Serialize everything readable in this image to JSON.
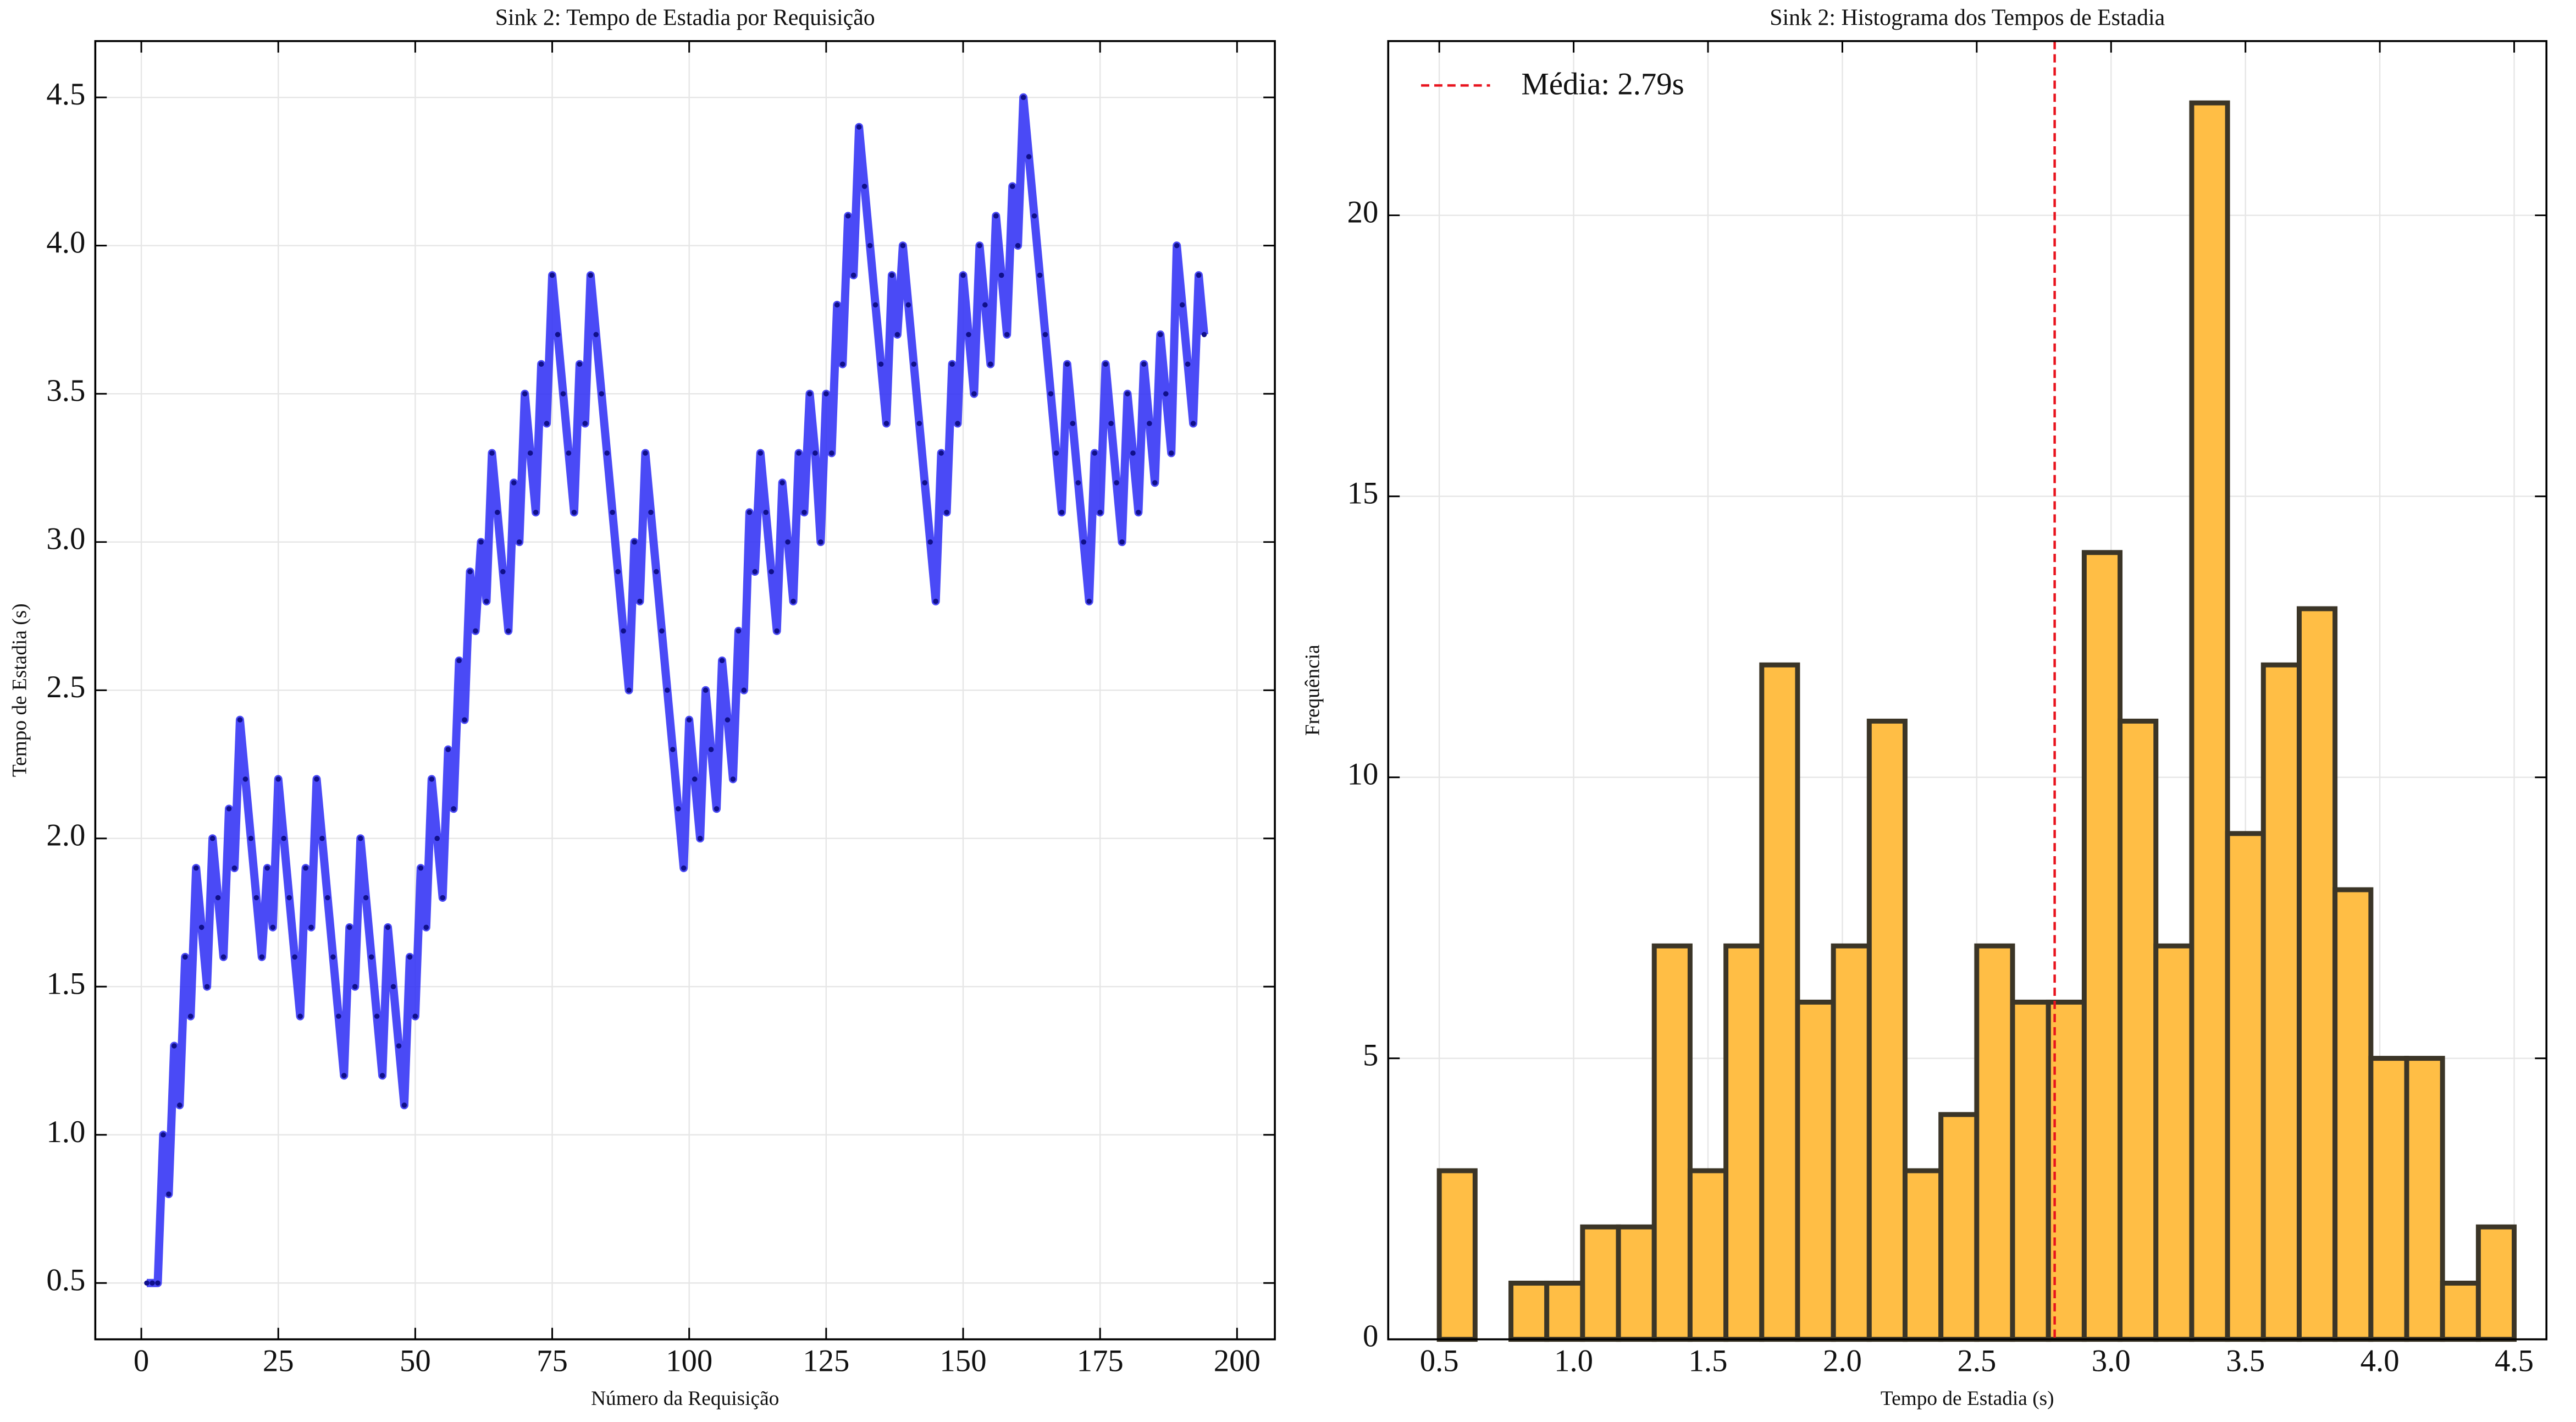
{
  "chart_data": [
    {
      "type": "line",
      "title": "Sink 2: Tempo de Estadia por Requisição",
      "x_label": "Número da Requisição",
      "y_label": "Tempo de Estadia (s)",
      "x": [
        1,
        2,
        3,
        4,
        5,
        6,
        7,
        8,
        9,
        10,
        11,
        12,
        13,
        14,
        15,
        16,
        17,
        18,
        19,
        20,
        21,
        22,
        23,
        24,
        25,
        26,
        27,
        28,
        29,
        30,
        31,
        32,
        33,
        34,
        35,
        36,
        37,
        38,
        39,
        40,
        41,
        42,
        43,
        44,
        45,
        46,
        47,
        48,
        49,
        50,
        51,
        52,
        53,
        54,
        55,
        56,
        57,
        58,
        59,
        60,
        61,
        62,
        63,
        64,
        65,
        66,
        67,
        68,
        69,
        70,
        71,
        72,
        73,
        74,
        75,
        76,
        77,
        78,
        79,
        80,
        81,
        82,
        83,
        84,
        85,
        86,
        87,
        88,
        89,
        90,
        91,
        92,
        93,
        94,
        95,
        96,
        97,
        98,
        99,
        100,
        101,
        102,
        103,
        104,
        105,
        106,
        107,
        108,
        109,
        110,
        111,
        112,
        113,
        114,
        115,
        116,
        117,
        118,
        119,
        120,
        121,
        122,
        123,
        124,
        125,
        126,
        127,
        128,
        129,
        130,
        131,
        132,
        133,
        134,
        135,
        136,
        137,
        138,
        139,
        140,
        141,
        142,
        143,
        144,
        145,
        146,
        147,
        148,
        149,
        150,
        151,
        152,
        153,
        154,
        155,
        156,
        157,
        158,
        159,
        160,
        161,
        162,
        163,
        164,
        165,
        166,
        167,
        168,
        169,
        170,
        171,
        172,
        173,
        174,
        175,
        176,
        177,
        178,
        179,
        180,
        181,
        182,
        183,
        184,
        185,
        186,
        187,
        188,
        189,
        190,
        191,
        192,
        193,
        194
      ],
      "series": [
        {
          "color": "#2a2af5",
          "values": [
            0.5,
            0.5,
            0.5,
            1.0,
            0.8,
            1.3,
            1.1,
            1.6,
            1.4,
            1.9,
            1.7,
            1.5,
            2.0,
            1.8,
            1.6,
            2.1,
            1.9,
            2.4,
            2.2,
            2.0,
            1.8,
            1.6,
            1.9,
            1.7,
            2.2,
            2.0,
            1.8,
            1.6,
            1.4,
            1.9,
            1.7,
            2.2,
            2.0,
            1.8,
            1.6,
            1.4,
            1.2,
            1.7,
            1.5,
            2.0,
            1.8,
            1.6,
            1.4,
            1.2,
            1.7,
            1.5,
            1.3,
            1.1,
            1.6,
            1.4,
            1.9,
            1.7,
            2.2,
            2.0,
            1.8,
            2.3,
            2.1,
            2.6,
            2.4,
            2.9,
            2.7,
            3.0,
            2.8,
            3.3,
            3.1,
            2.9,
            2.7,
            3.2,
            3.0,
            3.5,
            3.3,
            3.1,
            3.6,
            3.4,
            3.9,
            3.7,
            3.5,
            3.3,
            3.1,
            3.6,
            3.4,
            3.9,
            3.7,
            3.5,
            3.3,
            3.1,
            2.9,
            2.7,
            2.5,
            3.0,
            2.8,
            3.3,
            3.1,
            2.9,
            2.7,
            2.5,
            2.3,
            2.1,
            1.9,
            2.4,
            2.2,
            2.0,
            2.5,
            2.3,
            2.1,
            2.6,
            2.4,
            2.2,
            2.7,
            2.5,
            3.1,
            2.9,
            3.3,
            3.1,
            2.9,
            2.7,
            3.2,
            3.0,
            2.8,
            3.3,
            3.1,
            3.5,
            3.3,
            3.0,
            3.5,
            3.3,
            3.8,
            3.6,
            4.1,
            3.9,
            4.4,
            4.2,
            4.0,
            3.8,
            3.6,
            3.4,
            3.9,
            3.7,
            4.0,
            3.8,
            3.6,
            3.4,
            3.2,
            3.0,
            2.8,
            3.3,
            3.1,
            3.6,
            3.4,
            3.9,
            3.7,
            3.5,
            4.0,
            3.8,
            3.6,
            4.1,
            3.9,
            3.7,
            4.2,
            4.0,
            4.5,
            4.3,
            4.1,
            3.9,
            3.7,
            3.5,
            3.3,
            3.1,
            3.6,
            3.4,
            3.2,
            3.0,
            2.8,
            3.3,
            3.1,
            3.6,
            3.4,
            3.2,
            3.0,
            3.5,
            3.3,
            3.1,
            3.6,
            3.4,
            3.2,
            3.7,
            3.5,
            3.3,
            4.0,
            3.8,
            3.6,
            3.4,
            3.9,
            3.7
          ]
        }
      ],
      "xlim": [
        -8.4,
        206.9
      ],
      "ylim": [
        0.31,
        4.69
      ],
      "xticks": [
        0,
        25,
        50,
        75,
        100,
        125,
        150,
        175,
        200
      ],
      "yticks": [
        0.5,
        {
          "value": 1,
          "label": "1.0"
        },
        1.5,
        {
          "value": 2,
          "label": "2.0"
        },
        2.5,
        {
          "value": 3,
          "label": "3.0"
        },
        3.5,
        {
          "value": 4,
          "label": "4.0"
        },
        4.5
      ],
      "grid": true
    },
    {
      "type": "histogram",
      "title": "Sink 2: Histograma dos Tempos de Estadia",
      "x_label": "Tempo de Estadia (s)",
      "y_label": "Frequência",
      "bins": [
        0.5,
        0.6333,
        0.7667,
        0.9,
        1.0333,
        1.1667,
        1.3,
        1.4333,
        1.5667,
        1.7,
        1.8333,
        1.9667,
        2.1,
        2.2333,
        2.3667,
        2.5,
        2.6333,
        2.7667,
        2.9,
        3.0333,
        3.1667,
        3.3,
        3.4333,
        3.5667,
        3.7,
        3.8333,
        3.9667,
        4.1,
        4.2333,
        4.3667,
        4.5
      ],
      "values": [
        3,
        0,
        1,
        1,
        2,
        2,
        7,
        3,
        7,
        12,
        6,
        7,
        11,
        3,
        4,
        7,
        6,
        6,
        14,
        11,
        7,
        22,
        9,
        12,
        13,
        8,
        5,
        5,
        1,
        2
      ],
      "color": "#ffbe45",
      "edge_color": "#3b3527",
      "mean_line": {
        "value": 2.79,
        "label": "Média: 2.79s",
        "color": "#e8141e"
      },
      "legend": "upper left",
      "xlim": [
        0.31,
        4.62
      ],
      "ylim": [
        0,
        23.1
      ],
      "xticks": [
        0.5,
        {
          "value": 1,
          "label": "1.0"
        },
        1.5,
        {
          "value": 2,
          "label": "2.0"
        },
        2.5,
        {
          "value": 3,
          "label": "3.0"
        },
        3.5,
        {
          "value": 4,
          "label": "4.0"
        },
        4.5
      ],
      "yticks": [
        0,
        5,
        10,
        15,
        20
      ],
      "grid": true
    }
  ]
}
